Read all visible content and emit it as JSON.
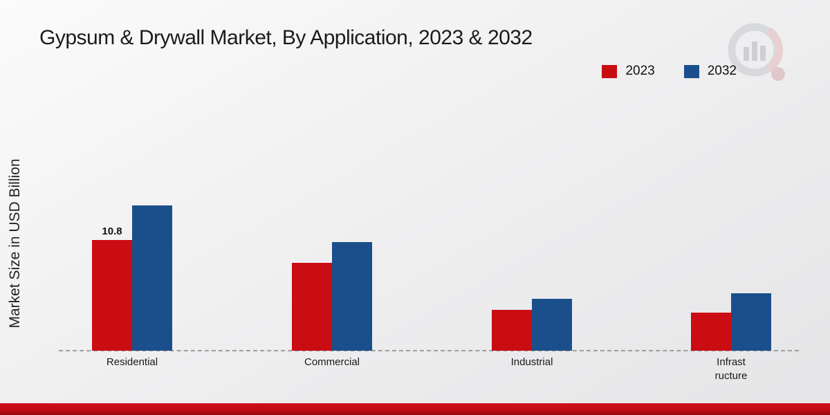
{
  "title": "Gypsum & Drywall Market, By Application, 2023 & 2032",
  "ylabel": "Market Size in USD Billion",
  "legend": [
    {
      "label": "2023",
      "color": "#c90d13"
    },
    {
      "label": "2032",
      "color": "#1b4f8b"
    }
  ],
  "chart_data": {
    "type": "bar",
    "title": "Gypsum & Drywall Market, By Application, 2023 & 2032",
    "xlabel": "",
    "ylabel": "Market Size in USD Billion",
    "ylim": [
      0,
      15
    ],
    "grid": false,
    "legend_position": "top-right",
    "baseline_style": "dashed",
    "categories": [
      "Residential",
      "Commercial",
      "Industrial",
      "Infrast\nructure"
    ],
    "series": [
      {
        "name": "2023",
        "color": "#c90d13",
        "values": [
          10.8,
          8.6,
          4.0,
          3.7
        ]
      },
      {
        "name": "2032",
        "color": "#1b4f8b",
        "values": [
          14.2,
          10.6,
          5.1,
          5.6
        ]
      }
    ],
    "data_labels": [
      {
        "series": "2023",
        "category": "Residential",
        "text": "10.8"
      }
    ]
  }
}
